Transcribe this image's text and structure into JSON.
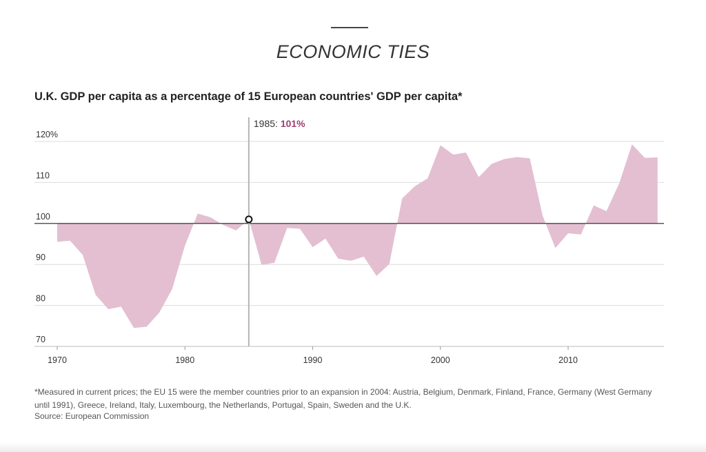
{
  "header": {
    "section_title": "ECONOMIC TIES"
  },
  "chart_data": {
    "type": "area",
    "title": "U.K. GDP per capita as a percentage of 15 European countries' GDP per capita*",
    "xlabel": "",
    "ylabel": "",
    "xlim": [
      1970,
      2017.5
    ],
    "ylim": [
      70,
      122
    ],
    "baseline": 100,
    "grid": true,
    "fill_color": "#e3bfd1",
    "highlight_color": "#9c3f72",
    "y_ticks": [
      {
        "value": 70,
        "label": "70"
      },
      {
        "value": 80,
        "label": "80"
      },
      {
        "value": 90,
        "label": "90"
      },
      {
        "value": 100,
        "label": "100"
      },
      {
        "value": 110,
        "label": "110"
      },
      {
        "value": 120,
        "label": "120%"
      }
    ],
    "x_ticks": [
      {
        "value": 1970,
        "label": "1970"
      },
      {
        "value": 1980,
        "label": "1980"
      },
      {
        "value": 1990,
        "label": "1990"
      },
      {
        "value": 2000,
        "label": "2000"
      },
      {
        "value": 2010,
        "label": "2010"
      }
    ],
    "series": [
      {
        "x": [
          1970,
          1971,
          1972,
          1973,
          1974,
          1975,
          1976,
          1977,
          1978,
          1979,
          1980,
          1981,
          1982,
          1983,
          1984,
          1985,
          1986,
          1987,
          1988,
          1989,
          1990,
          1991,
          1992,
          1993,
          1994,
          1995,
          1996,
          1997,
          1998,
          1999,
          2000,
          2001,
          2002,
          2003,
          2004,
          2005,
          2006,
          2007,
          2008,
          2009,
          2010,
          2011,
          2012,
          2013,
          2014,
          2015,
          2016,
          2017
        ],
        "y": [
          95.5,
          95.8,
          92.3,
          82.6,
          79.1,
          79.7,
          74.5,
          74.8,
          78.3,
          84,
          94.6,
          102.4,
          101.5,
          99.6,
          98.3,
          101,
          89.9,
          90.4,
          98.9,
          98.7,
          94.2,
          96.3,
          91.4,
          90.9,
          91.9,
          87.2,
          90.1,
          106.1,
          109.1,
          111,
          119.1,
          116.8,
          117.3,
          111.3,
          114.5,
          115.7,
          116.2,
          115.9,
          101.9,
          94,
          97.6,
          97.3,
          104.4,
          103,
          109.8,
          119.3,
          116,
          116.1
        ]
      }
    ],
    "annotation": {
      "year": 1985,
      "label": "1985:",
      "value_label": "101%",
      "value": 101
    },
    "footnote": "*Measured in current prices; the EU 15 were the member countries prior to an expansion in 2004: Austria, Belgium, Denmark, Finland, France, Germany (West Germany until 1991), Greece, Ireland, Italy, Luxembourg, the Netherlands, Portugal, Spain, Sweden and the U.K.",
    "source": "Source: European Commission"
  }
}
